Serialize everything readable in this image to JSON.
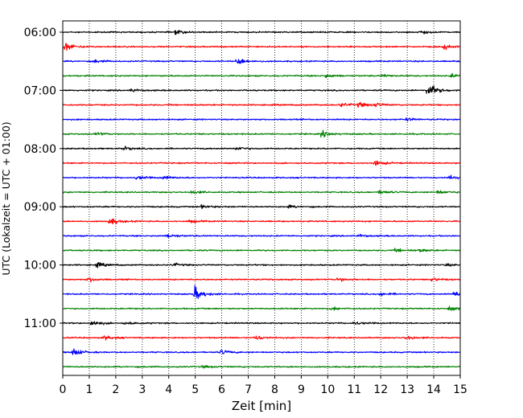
{
  "chart_data": {
    "type": "line",
    "xlabel": "Zeit  [min]",
    "ylabel": "UTC (Lokalzeit = UTC + 01:00)",
    "xlim": [
      0,
      15
    ],
    "x_ticks": [
      "0",
      "1",
      "2",
      "3",
      "4",
      "5",
      "6",
      "7",
      "8",
      "9",
      "10",
      "11",
      "12",
      "13",
      "14",
      "15"
    ],
    "y_ticks": [
      "06:00",
      "07:00",
      "08:00",
      "09:00",
      "10:00",
      "11:00"
    ],
    "grid": "vertical dotted at each minute",
    "trace_colors": [
      "#000000",
      "#ff0000",
      "#0000ff",
      "#008000"
    ],
    "traces": [
      {
        "start": "06:00",
        "color": "#000000",
        "events": [
          {
            "t": 4.3,
            "amp": 1.2
          },
          {
            "t": 13.5,
            "amp": 1.0
          }
        ]
      },
      {
        "start": "06:15",
        "color": "#ff0000",
        "events": [
          {
            "t": 0.1,
            "amp": 2.6
          },
          {
            "t": 14.4,
            "amp": 1.6
          }
        ]
      },
      {
        "start": "06:30",
        "color": "#0000ff",
        "events": [
          {
            "t": 1.2,
            "amp": 1.0
          },
          {
            "t": 6.6,
            "amp": 2.2
          }
        ]
      },
      {
        "start": "06:45",
        "color": "#008000",
        "events": [
          {
            "t": 9.9,
            "amp": 1.3
          },
          {
            "t": 12.1,
            "amp": 0.8
          },
          {
            "t": 14.7,
            "amp": 1.0
          }
        ]
      },
      {
        "start": "07:00",
        "color": "#000000",
        "events": [
          {
            "t": 2.6,
            "amp": 0.9
          },
          {
            "t": 13.8,
            "amp": 4.5
          }
        ]
      },
      {
        "start": "07:15",
        "color": "#ff0000",
        "events": [
          {
            "t": 10.5,
            "amp": 1.3
          },
          {
            "t": 11.2,
            "amp": 1.4
          },
          {
            "t": 11.8,
            "amp": 1.3
          }
        ]
      },
      {
        "start": "07:30",
        "color": "#0000ff",
        "events": [
          {
            "t": 13.0,
            "amp": 0.9
          }
        ]
      },
      {
        "start": "07:45",
        "color": "#008000",
        "events": [
          {
            "t": 1.3,
            "amp": 0.9
          },
          {
            "t": 9.8,
            "amp": 1.8
          }
        ]
      },
      {
        "start": "08:00",
        "color": "#000000",
        "events": [
          {
            "t": 2.3,
            "amp": 1.1
          },
          {
            "t": 6.6,
            "amp": 1.2
          }
        ]
      },
      {
        "start": "08:15",
        "color": "#ff0000",
        "events": [
          {
            "t": 11.8,
            "amp": 1.6
          }
        ]
      },
      {
        "start": "08:30",
        "color": "#0000ff",
        "events": [
          {
            "t": 2.8,
            "amp": 1.1
          },
          {
            "t": 3.8,
            "amp": 1.1
          },
          {
            "t": 14.6,
            "amp": 1.2
          }
        ]
      },
      {
        "start": "08:45",
        "color": "#008000",
        "events": [
          {
            "t": 4.9,
            "amp": 1.1
          },
          {
            "t": 12.0,
            "amp": 1.2
          },
          {
            "t": 14.2,
            "amp": 1.0
          }
        ]
      },
      {
        "start": "09:00",
        "color": "#000000",
        "events": [
          {
            "t": 5.3,
            "amp": 1.0
          },
          {
            "t": 8.5,
            "amp": 0.8
          }
        ]
      },
      {
        "start": "09:15",
        "color": "#ff0000",
        "events": [
          {
            "t": 1.8,
            "amp": 2.0
          },
          {
            "t": 4.8,
            "amp": 0.8
          }
        ]
      },
      {
        "start": "09:30",
        "color": "#0000ff",
        "events": [
          {
            "t": 4.0,
            "amp": 1.1
          },
          {
            "t": 11.2,
            "amp": 0.8
          }
        ]
      },
      {
        "start": "09:45",
        "color": "#008000",
        "events": [
          {
            "t": 12.6,
            "amp": 1.0
          },
          {
            "t": 13.5,
            "amp": 0.9
          }
        ]
      },
      {
        "start": "10:00",
        "color": "#000000",
        "events": [
          {
            "t": 1.3,
            "amp": 1.4
          },
          {
            "t": 4.2,
            "amp": 0.9
          },
          {
            "t": 14.5,
            "amp": 0.8
          }
        ]
      },
      {
        "start": "10:15",
        "color": "#ff0000",
        "events": [
          {
            "t": 1.0,
            "amp": 1.3
          },
          {
            "t": 10.4,
            "amp": 1.2
          },
          {
            "t": 13.9,
            "amp": 1.2
          }
        ]
      },
      {
        "start": "10:30",
        "color": "#0000ff",
        "events": [
          {
            "t": 5.0,
            "amp": 4.2
          },
          {
            "t": 12.0,
            "amp": 1.1
          },
          {
            "t": 14.8,
            "amp": 1.4
          }
        ]
      },
      {
        "start": "10:45",
        "color": "#008000",
        "events": [
          {
            "t": 10.2,
            "amp": 1.0
          },
          {
            "t": 14.6,
            "amp": 1.0
          }
        ]
      },
      {
        "start": "11:00",
        "color": "#000000",
        "events": [
          {
            "t": 1.1,
            "amp": 1.7
          },
          {
            "t": 2.4,
            "amp": 1.0
          },
          {
            "t": 11.0,
            "amp": 0.9
          }
        ]
      },
      {
        "start": "11:15",
        "color": "#ff0000",
        "events": [
          {
            "t": 1.6,
            "amp": 1.3
          },
          {
            "t": 7.3,
            "amp": 1.2
          },
          {
            "t": 13.0,
            "amp": 1.1
          }
        ]
      },
      {
        "start": "11:30",
        "color": "#0000ff",
        "events": [
          {
            "t": 0.4,
            "amp": 2.5
          },
          {
            "t": 6.0,
            "amp": 1.3
          }
        ]
      },
      {
        "start": "11:45",
        "color": "#008000",
        "events": [
          {
            "t": 5.3,
            "amp": 0.7
          }
        ]
      }
    ]
  }
}
